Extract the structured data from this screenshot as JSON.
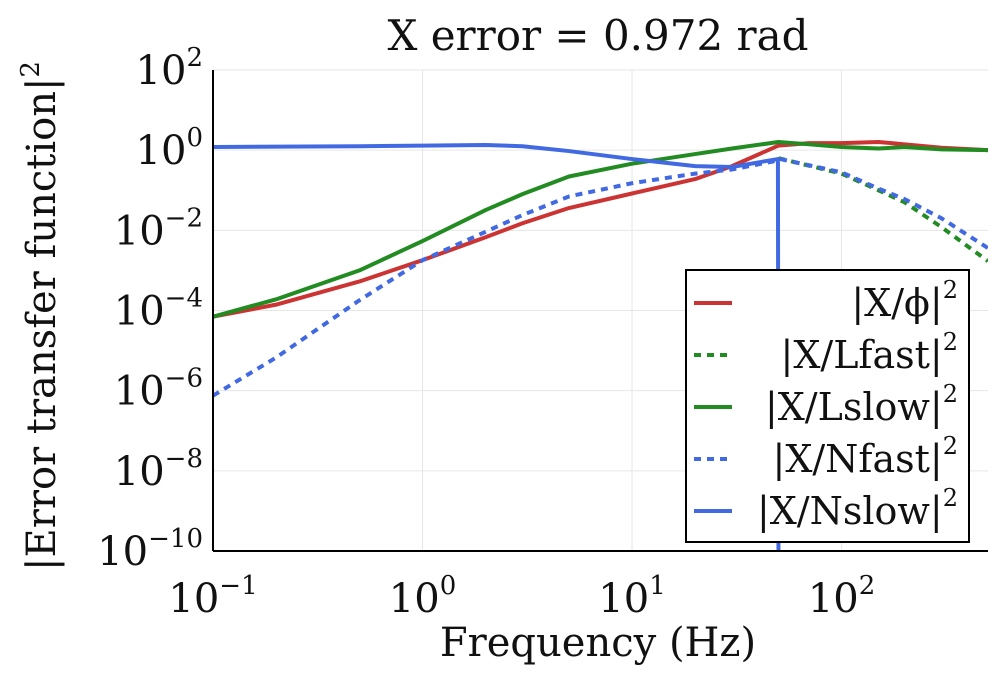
{
  "chart_data": {
    "type": "line",
    "title": "X error = 0.972 rad",
    "xlabel": "Frequency (Hz)",
    "ylabel": "|Error transfer function|",
    "ylabel_exp": "2",
    "xscale": "log",
    "yscale": "log",
    "xlim": [
      0.1,
      500
    ],
    "ylim": [
      1e-10,
      100
    ],
    "grid": true,
    "legend_position": "lower-right",
    "x_ticks": [
      {
        "value": 0.1,
        "base": "10",
        "exp": "−1"
      },
      {
        "value": 1,
        "base": "10",
        "exp": "0"
      },
      {
        "value": 10,
        "base": "10",
        "exp": "1"
      },
      {
        "value": 100,
        "base": "10",
        "exp": "2"
      }
    ],
    "y_ticks": [
      {
        "value": 100,
        "base": "10",
        "exp": "2"
      },
      {
        "value": 1,
        "base": "10",
        "exp": "0"
      },
      {
        "value": 0.01,
        "base": "10",
        "exp": "−2"
      },
      {
        "value": 0.0001,
        "base": "10",
        "exp": "−4"
      },
      {
        "value": 1e-06,
        "base": "10",
        "exp": "−6"
      },
      {
        "value": 1e-08,
        "base": "10",
        "exp": "−8"
      },
      {
        "value": 1e-10,
        "base": "10",
        "exp": "−10"
      }
    ],
    "series": [
      {
        "name": "|X/ϕ|",
        "legend_text": "|X/ϕ|",
        "legend_exp": "2",
        "color": "#cc3333",
        "dash": "solid",
        "points": [
          [
            0.1,
            7e-05
          ],
          [
            0.2,
            0.00014
          ],
          [
            0.5,
            0.00053
          ],
          [
            1,
            0.0018
          ],
          [
            2,
            0.0067
          ],
          [
            3,
            0.015
          ],
          [
            5,
            0.036
          ],
          [
            10,
            0.083
          ],
          [
            20,
            0.19
          ],
          [
            30,
            0.4
          ],
          [
            50,
            1.3
          ],
          [
            70,
            1.5
          ],
          [
            100,
            1.5
          ],
          [
            150,
            1.6
          ],
          [
            200,
            1.4
          ],
          [
            300,
            1.15
          ],
          [
            500,
            1.0
          ]
        ]
      },
      {
        "name": "|X/Lfast|",
        "legend_text": "|X/Lfast|",
        "legend_exp": "2",
        "color": "#228b22",
        "dash": "dotted",
        "points": [
          [
            50,
            0.63
          ],
          [
            100,
            0.26
          ],
          [
            150,
            0.1
          ],
          [
            200,
            0.05
          ],
          [
            300,
            0.012
          ],
          [
            500,
            0.0017
          ]
        ]
      },
      {
        "name": "|X/Lslow|",
        "legend_text": "|X/Lslow|",
        "legend_exp": "2",
        "color": "#228b22",
        "dash": "solid",
        "points": [
          [
            0.1,
            7e-05
          ],
          [
            0.2,
            0.00019
          ],
          [
            0.5,
            0.001
          ],
          [
            1,
            0.0054
          ],
          [
            2,
            0.032
          ],
          [
            3,
            0.08
          ],
          [
            5,
            0.22
          ],
          [
            10,
            0.46
          ],
          [
            20,
            0.8
          ],
          [
            30,
            1.1
          ],
          [
            50,
            1.6
          ],
          [
            70,
            1.4
          ],
          [
            100,
            1.2
          ],
          [
            150,
            1.1
          ],
          [
            200,
            1.2
          ],
          [
            300,
            1.05
          ],
          [
            500,
            1.0
          ]
        ]
      },
      {
        "name": "|X/Nfast|",
        "legend_text": "|X/Nfast|",
        "legend_exp": "2",
        "color": "#4169e1",
        "dash": "dotted",
        "points": [
          [
            0.1,
            7.5e-07
          ],
          [
            0.2,
            6.7e-06
          ],
          [
            0.5,
            0.00018
          ],
          [
            1,
            0.0018
          ],
          [
            2,
            0.0092
          ],
          [
            3,
            0.024
          ],
          [
            5,
            0.07
          ],
          [
            10,
            0.15
          ],
          [
            20,
            0.26
          ],
          [
            30,
            0.33
          ],
          [
            49.5,
            0.55
          ],
          [
            51,
            0.6
          ],
          [
            100,
            0.28
          ],
          [
            150,
            0.11
          ],
          [
            200,
            0.06
          ],
          [
            300,
            0.02
          ],
          [
            500,
            0.0036
          ]
        ]
      },
      {
        "name": "|X/Nslow|",
        "legend_text": "|X/Nslow|",
        "legend_exp": "2",
        "color": "#4169e1",
        "dash": "solid",
        "points": [
          [
            0.1,
            1.2
          ],
          [
            0.5,
            1.25
          ],
          [
            1,
            1.3
          ],
          [
            2,
            1.35
          ],
          [
            3,
            1.25
          ],
          [
            5,
            0.95
          ],
          [
            10,
            0.6
          ],
          [
            20,
            0.4
          ],
          [
            30,
            0.38
          ],
          [
            45,
            0.55
          ],
          [
            49.7,
            0.6
          ],
          [
            50,
            1e-10
          ]
        ]
      }
    ]
  }
}
